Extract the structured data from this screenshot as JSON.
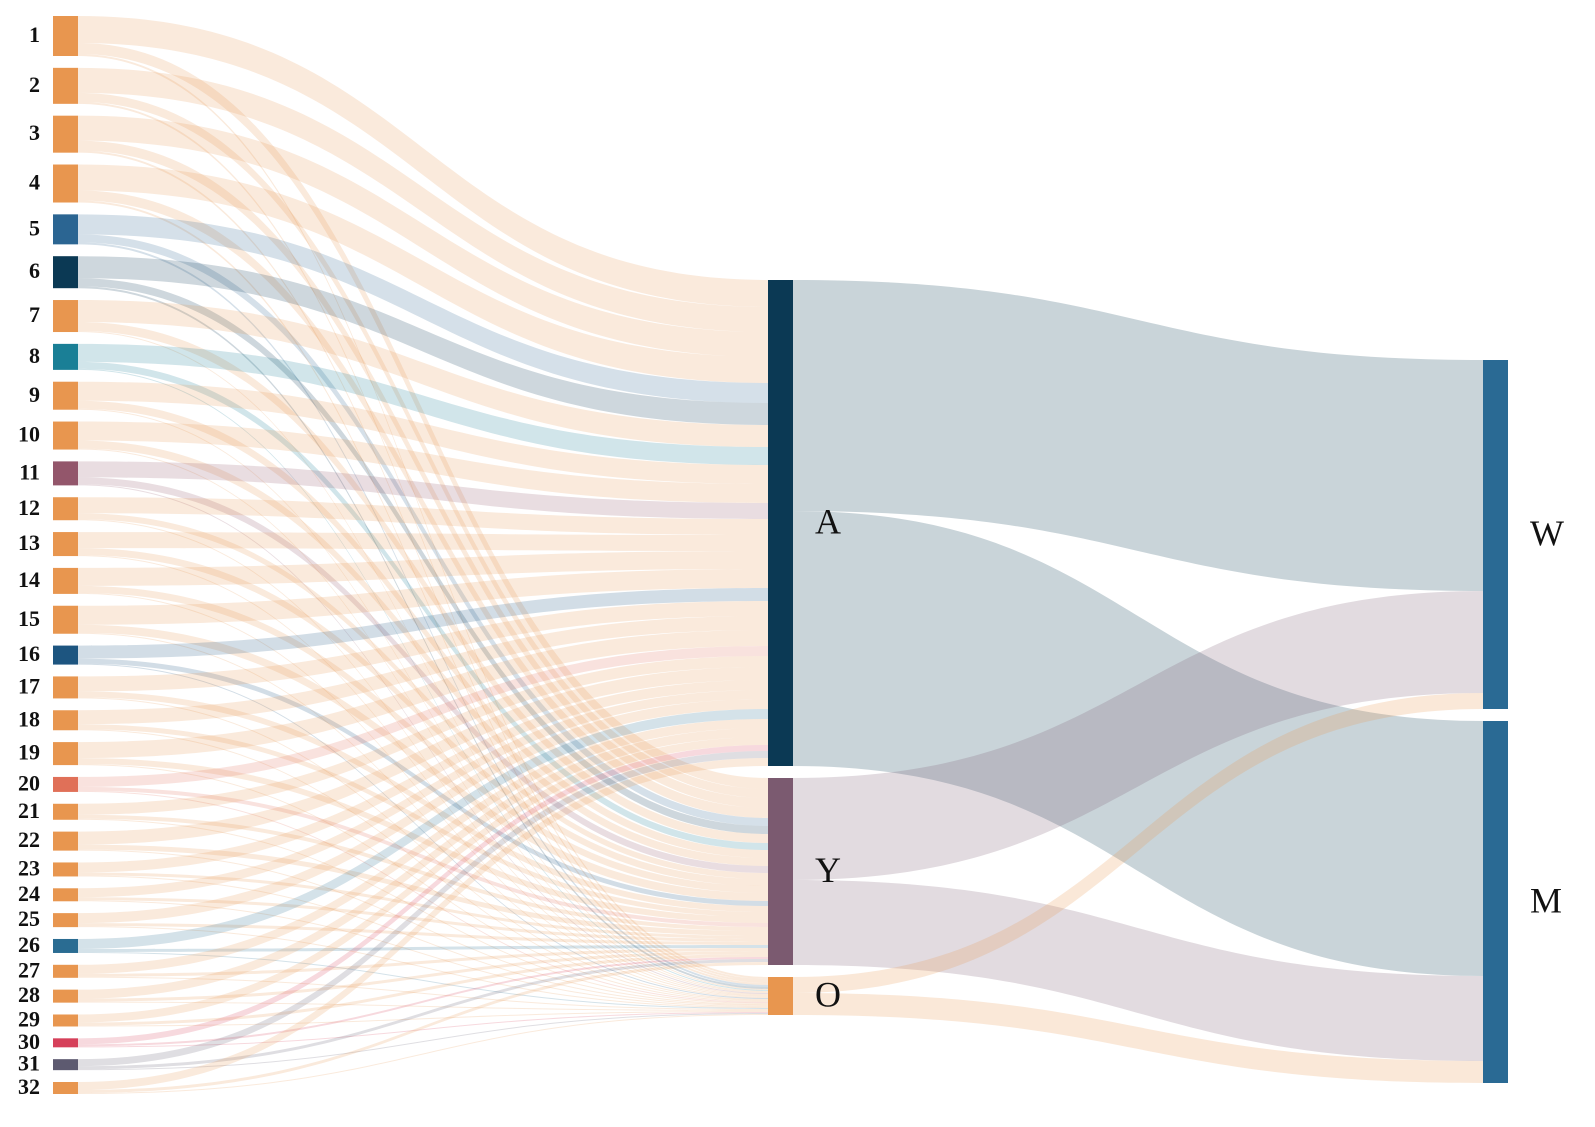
{
  "chart_data": {
    "type": "sankey",
    "nodes": [
      {
        "name": "1",
        "color": "#e8964f"
      },
      {
        "name": "2",
        "color": "#e8964f"
      },
      {
        "name": "3",
        "color": "#e8964f"
      },
      {
        "name": "4",
        "color": "#e8964f"
      },
      {
        "name": "5",
        "color": "#2b6592"
      },
      {
        "name": "6",
        "color": "#0b3954"
      },
      {
        "name": "7",
        "color": "#e8964f"
      },
      {
        "name": "8",
        "color": "#1a7f96"
      },
      {
        "name": "9",
        "color": "#e8964f"
      },
      {
        "name": "10",
        "color": "#e8964f"
      },
      {
        "name": "11",
        "color": "#93566b"
      },
      {
        "name": "12",
        "color": "#e8964f"
      },
      {
        "name": "13",
        "color": "#e8964f"
      },
      {
        "name": "14",
        "color": "#e8964f"
      },
      {
        "name": "15",
        "color": "#e8964f"
      },
      {
        "name": "16",
        "color": "#1d5580"
      },
      {
        "name": "17",
        "color": "#e8964f"
      },
      {
        "name": "18",
        "color": "#e8964f"
      },
      {
        "name": "19",
        "color": "#e8964f"
      },
      {
        "name": "20",
        "color": "#e07058"
      },
      {
        "name": "21",
        "color": "#e8964f"
      },
      {
        "name": "22",
        "color": "#e8964f"
      },
      {
        "name": "23",
        "color": "#e8964f"
      },
      {
        "name": "24",
        "color": "#e8964f"
      },
      {
        "name": "25",
        "color": "#e8964f"
      },
      {
        "name": "26",
        "color": "#2a6c92"
      },
      {
        "name": "27",
        "color": "#e8964f"
      },
      {
        "name": "28",
        "color": "#e8964f"
      },
      {
        "name": "29",
        "color": "#e8964f"
      },
      {
        "name": "30",
        "color": "#d6405a"
      },
      {
        "name": "31",
        "color": "#5d5a70"
      },
      {
        "name": "32",
        "color": "#e8964f"
      },
      {
        "name": "A",
        "color": "#0b3954"
      },
      {
        "name": "Y",
        "color": "#7b5a70"
      },
      {
        "name": "O",
        "color": "#e8964f"
      },
      {
        "name": "W",
        "color": "#2a6a94"
      },
      {
        "name": "M",
        "color": "#2a6a94"
      }
    ],
    "links": [
      {
        "source": "1",
        "target": "A",
        "value": 27
      },
      {
        "source": "1",
        "target": "Y",
        "value": 11
      },
      {
        "source": "1",
        "target": "O",
        "value": 2
      },
      {
        "source": "2",
        "target": "A",
        "value": 25
      },
      {
        "source": "2",
        "target": "Y",
        "value": 9
      },
      {
        "source": "2",
        "target": "O",
        "value": 2
      },
      {
        "source": "3",
        "target": "A",
        "value": 25
      },
      {
        "source": "3",
        "target": "Y",
        "value": 10
      },
      {
        "source": "3",
        "target": "O",
        "value": 2
      },
      {
        "source": "4",
        "target": "A",
        "value": 26
      },
      {
        "source": "4",
        "target": "Y",
        "value": 10
      },
      {
        "source": "4",
        "target": "O",
        "value": 2
      },
      {
        "source": "5",
        "target": "A",
        "value": 20
      },
      {
        "source": "5",
        "target": "Y",
        "value": 8
      },
      {
        "source": "5",
        "target": "O",
        "value": 2
      },
      {
        "source": "6",
        "target": "A",
        "value": 22
      },
      {
        "source": "6",
        "target": "Y",
        "value": 8
      },
      {
        "source": "6",
        "target": "O",
        "value": 2
      },
      {
        "source": "7",
        "target": "A",
        "value": 22
      },
      {
        "source": "7",
        "target": "Y",
        "value": 9
      },
      {
        "source": "7",
        "target": "O",
        "value": 1
      },
      {
        "source": "8",
        "target": "A",
        "value": 18
      },
      {
        "source": "8",
        "target": "Y",
        "value": 7
      },
      {
        "source": "8",
        "target": "O",
        "value": 1
      },
      {
        "source": "9",
        "target": "A",
        "value": 19
      },
      {
        "source": "9",
        "target": "Y",
        "value": 8
      },
      {
        "source": "9",
        "target": "O",
        "value": 1
      },
      {
        "source": "10",
        "target": "A",
        "value": 19
      },
      {
        "source": "10",
        "target": "Y",
        "value": 8
      },
      {
        "source": "10",
        "target": "O",
        "value": 1
      },
      {
        "source": "11",
        "target": "A",
        "value": 16
      },
      {
        "source": "11",
        "target": "Y",
        "value": 7
      },
      {
        "source": "11",
        "target": "O",
        "value": 1
      },
      {
        "source": "12",
        "target": "A",
        "value": 16
      },
      {
        "source": "12",
        "target": "Y",
        "value": 6
      },
      {
        "source": "12",
        "target": "O",
        "value": 1
      },
      {
        "source": "13",
        "target": "A",
        "value": 16
      },
      {
        "source": "13",
        "target": "Y",
        "value": 7
      },
      {
        "source": "13",
        "target": "O",
        "value": 1
      },
      {
        "source": "14",
        "target": "A",
        "value": 18
      },
      {
        "source": "14",
        "target": "Y",
        "value": 7
      },
      {
        "source": "14",
        "target": "O",
        "value": 1
      },
      {
        "source": "15",
        "target": "A",
        "value": 19
      },
      {
        "source": "15",
        "target": "Y",
        "value": 8
      },
      {
        "source": "15",
        "target": "O",
        "value": 1
      },
      {
        "source": "16",
        "target": "A",
        "value": 13
      },
      {
        "source": "16",
        "target": "Y",
        "value": 5
      },
      {
        "source": "16",
        "target": "O",
        "value": 1
      },
      {
        "source": "17",
        "target": "A",
        "value": 15
      },
      {
        "source": "17",
        "target": "Y",
        "value": 6
      },
      {
        "source": "17",
        "target": "O",
        "value": 1
      },
      {
        "source": "18",
        "target": "A",
        "value": 14
      },
      {
        "source": "18",
        "target": "Y",
        "value": 5
      },
      {
        "source": "18",
        "target": "O",
        "value": 1
      },
      {
        "source": "19",
        "target": "A",
        "value": 16
      },
      {
        "source": "19",
        "target": "Y",
        "value": 6
      },
      {
        "source": "19",
        "target": "O",
        "value": 1
      },
      {
        "source": "20",
        "target": "A",
        "value": 10
      },
      {
        "source": "20",
        "target": "Y",
        "value": 4
      },
      {
        "source": "20",
        "target": "O",
        "value": 1
      },
      {
        "source": "21",
        "target": "A",
        "value": 11
      },
      {
        "source": "21",
        "target": "Y",
        "value": 4
      },
      {
        "source": "21",
        "target": "O",
        "value": 1
      },
      {
        "source": "22",
        "target": "A",
        "value": 13
      },
      {
        "source": "22",
        "target": "Y",
        "value": 5
      },
      {
        "source": "22",
        "target": "O",
        "value": 1
      },
      {
        "source": "23",
        "target": "A",
        "value": 10
      },
      {
        "source": "23",
        "target": "Y",
        "value": 3
      },
      {
        "source": "23",
        "target": "O",
        "value": 1
      },
      {
        "source": "24",
        "target": "A",
        "value": 9
      },
      {
        "source": "24",
        "target": "Y",
        "value": 3
      },
      {
        "source": "24",
        "target": "O",
        "value": 1
      },
      {
        "source": "25",
        "target": "A",
        "value": 10
      },
      {
        "source": "25",
        "target": "Y",
        "value": 3
      },
      {
        "source": "25",
        "target": "O",
        "value": 1
      },
      {
        "source": "26",
        "target": "A",
        "value": 10
      },
      {
        "source": "26",
        "target": "Y",
        "value": 3
      },
      {
        "source": "26",
        "target": "O",
        "value": 1
      },
      {
        "source": "27",
        "target": "A",
        "value": 9
      },
      {
        "source": "27",
        "target": "Y",
        "value": 3
      },
      {
        "source": "27",
        "target": "O",
        "value": 1
      },
      {
        "source": "28",
        "target": "A",
        "value": 9
      },
      {
        "source": "28",
        "target": "Y",
        "value": 3
      },
      {
        "source": "28",
        "target": "O",
        "value": 1
      },
      {
        "source": "29",
        "target": "A",
        "value": 8
      },
      {
        "source": "29",
        "target": "Y",
        "value": 3
      },
      {
        "source": "29",
        "target": "O",
        "value": 1
      },
      {
        "source": "30",
        "target": "A",
        "value": 6
      },
      {
        "source": "30",
        "target": "Y",
        "value": 2
      },
      {
        "source": "30",
        "target": "O",
        "value": 1
      },
      {
        "source": "31",
        "target": "A",
        "value": 7
      },
      {
        "source": "31",
        "target": "Y",
        "value": 3
      },
      {
        "source": "31",
        "target": "O",
        "value": 1
      },
      {
        "source": "32",
        "target": "A",
        "value": 8
      },
      {
        "source": "32",
        "target": "Y",
        "value": 3
      },
      {
        "source": "32",
        "target": "O",
        "value": 1
      },
      {
        "source": "A",
        "target": "W",
        "value": 231
      },
      {
        "source": "A",
        "target": "M",
        "value": 255
      },
      {
        "source": "Y",
        "target": "W",
        "value": 102
      },
      {
        "source": "Y",
        "target": "M",
        "value": 85
      },
      {
        "source": "O",
        "target": "W",
        "value": 16
      },
      {
        "source": "O",
        "target": "M",
        "value": 22
      }
    ]
  }
}
